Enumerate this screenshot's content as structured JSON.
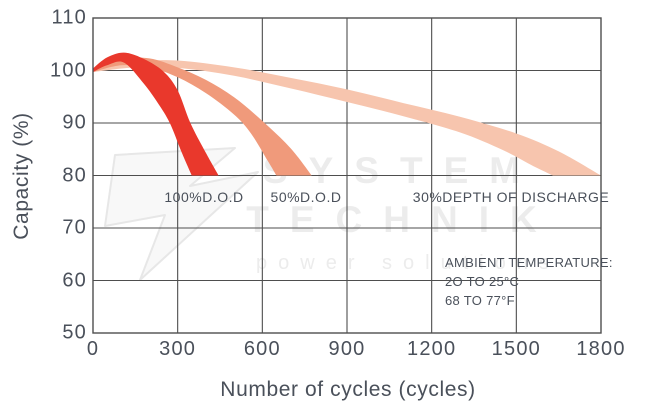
{
  "chart_data": {
    "type": "area",
    "title": "",
    "xlabel": "Number of cycles (cycles)",
    "ylabel": "Capacity (%)",
    "xlim": [
      0,
      1800
    ],
    "ylim": [
      50,
      110
    ],
    "x_ticks": [
      0,
      300,
      600,
      900,
      1200,
      1500,
      1800
    ],
    "y_ticks": [
      110,
      100,
      90,
      80,
      70,
      60,
      50
    ],
    "grid": true,
    "legend_position": "inline-labels",
    "series": [
      {
        "name": "30% depth of discharge",
        "label": "30%DEPTH OF DISCHARGE",
        "slug": "band-30-dod",
        "color": "#f7c5ae",
        "unit_note": "band of capacity (%) vs cycles, ends at 80% near 1800 cycles",
        "upper": [
          [
            0,
            100.3
          ],
          [
            150,
            101.7
          ],
          [
            300,
            101.9
          ],
          [
            500,
            100.6
          ],
          [
            700,
            98.6
          ],
          [
            900,
            96.4
          ],
          [
            1100,
            93.8
          ],
          [
            1300,
            91.2
          ],
          [
            1500,
            88.0
          ],
          [
            1650,
            84.6
          ],
          [
            1800,
            80
          ]
        ],
        "lower": [
          [
            0,
            99.7
          ],
          [
            150,
            100.6
          ],
          [
            300,
            100.5
          ],
          [
            500,
            99.0
          ],
          [
            700,
            96.6
          ],
          [
            900,
            94.0
          ],
          [
            1100,
            91.3
          ],
          [
            1300,
            88.2
          ],
          [
            1450,
            84.9
          ],
          [
            1560,
            81.8
          ],
          [
            1630,
            80
          ]
        ]
      },
      {
        "name": "50% depth of discharge",
        "label": "50%D.O.D",
        "slug": "band-50-dod",
        "color": "#f09a7b",
        "unit_note": "band of capacity (%) vs cycles, ends at 80% near 650-775 cycles",
        "upper": [
          [
            0,
            100.3
          ],
          [
            100,
            102.2
          ],
          [
            200,
            102.3
          ],
          [
            300,
            100.6
          ],
          [
            400,
            98.2
          ],
          [
            500,
            94.9
          ],
          [
            600,
            90.4
          ],
          [
            700,
            85.2
          ],
          [
            775,
            80
          ]
        ],
        "lower": [
          [
            0,
            99.7
          ],
          [
            100,
            101.0
          ],
          [
            200,
            100.6
          ],
          [
            300,
            98.7
          ],
          [
            400,
            95.7
          ],
          [
            500,
            91.6
          ],
          [
            560,
            88.0
          ],
          [
            620,
            82.7
          ],
          [
            650,
            80
          ]
        ]
      },
      {
        "name": "100% depth of discharge",
        "label": "100%D.O.D",
        "slug": "band-100-dod",
        "color": "#e9382c",
        "unit_note": "band of capacity (%) vs cycles, ends at 80% near 350-445 cycles",
        "upper": [
          [
            0,
            100.4
          ],
          [
            50,
            102.5
          ],
          [
            110,
            103.4
          ],
          [
            180,
            102.2
          ],
          [
            250,
            99.8
          ],
          [
            300,
            96.2
          ],
          [
            345,
            90.0
          ],
          [
            400,
            84.3
          ],
          [
            445,
            80
          ]
        ],
        "lower": [
          [
            0,
            99.7
          ],
          [
            50,
            101.0
          ],
          [
            110,
            101.5
          ],
          [
            180,
            97.5
          ],
          [
            230,
            93.8
          ],
          [
            272,
            90.0
          ],
          [
            315,
            84.3
          ],
          [
            350,
            80
          ]
        ]
      }
    ],
    "annotation": {
      "lines": [
        "AMBIENT TEMPERATURE:",
        "2O TO 25°C",
        "68 TO 77°F"
      ]
    }
  },
  "watermark": {
    "line1": "SYSTEM",
    "line2": "TECHNIK",
    "line3": "power solutions"
  },
  "style": {
    "grid_color": "#4e4e4e",
    "text_color": "#4a505a",
    "watermark_color": "#ececec"
  }
}
